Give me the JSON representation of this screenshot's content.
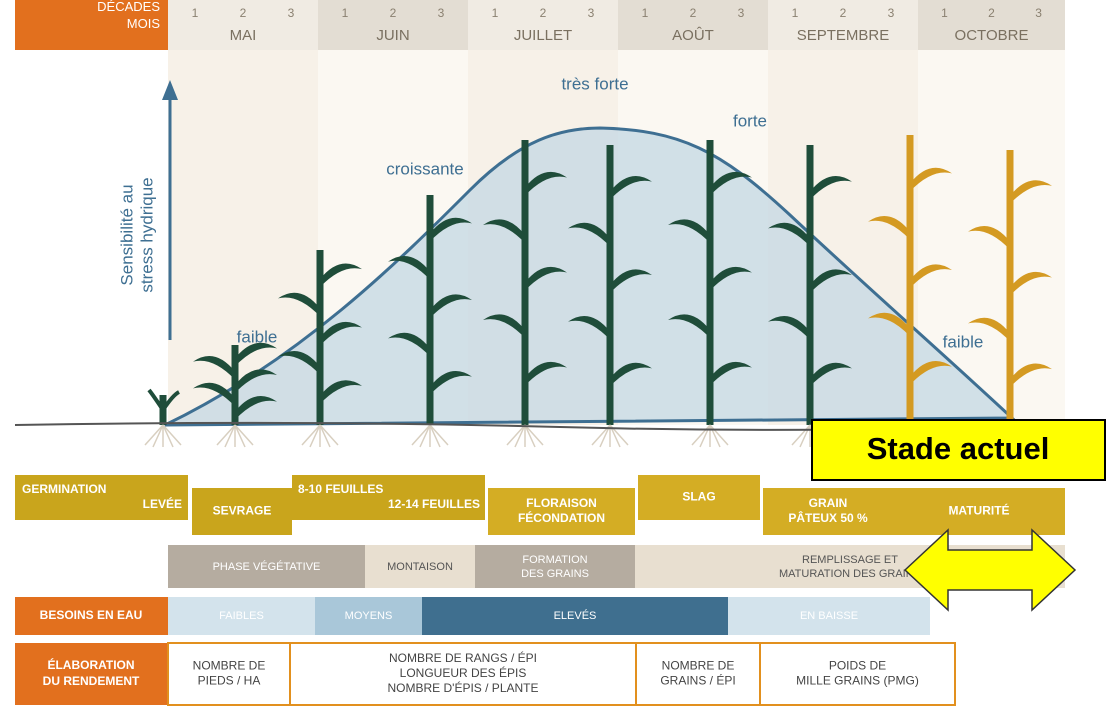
{
  "header": {
    "corner": [
      "DÉCADES",
      "MOIS"
    ],
    "decades": [
      "1",
      "2",
      "3"
    ],
    "months": [
      "MAI",
      "JUIN",
      "JUILLET",
      "AOÛT",
      "SEPTEMBRE",
      "OCTOBRE"
    ]
  },
  "curve": {
    "axis_label": [
      "Sensibilité au",
      "stress hydrique"
    ],
    "labels": [
      "très forte",
      "forte",
      "croissante",
      "faible",
      "faible"
    ]
  },
  "stages": [
    [
      "GERMINATION",
      "LEVÉE"
    ],
    [
      "SEVRAGE"
    ],
    [
      "8-10 FEUILLES",
      "12-14 FEUILLES"
    ],
    [
      "FLORAISON",
      "FÉCONDATION"
    ],
    [
      "SLAG"
    ],
    [
      "GRAIN",
      "PÂTEUX 50 %"
    ],
    [
      "MATURITÉ"
    ]
  ],
  "callout": "Stade actuel",
  "phases": [
    [
      "PHASE VÉGÉTATIVE"
    ],
    [
      "MONTAISON"
    ],
    [
      "FORMATION",
      "DES GRAINS"
    ],
    [
      "REMPLISSAGE ET",
      "MATURATION DES GRAINS"
    ]
  ],
  "water": {
    "title": "BESOINS EN EAU",
    "levels": [
      "FAIBLES",
      "MOYENS",
      "ELEVÉS",
      "EN BAISSE"
    ]
  },
  "yield": {
    "title": [
      "ÉLABORATION",
      "DU RENDEMENT"
    ],
    "items": [
      [
        "NOMBRE DE",
        "PIEDS / HA"
      ],
      [
        "NOMBRE DE RANGS / ÉPI",
        "LONGUEUR DES ÉPIS",
        "NOMBRE D'ÉPIS / PLANTE"
      ],
      [
        "NOMBRE DE",
        "GRAINS / ÉPI"
      ],
      [
        "POIDS DE",
        "MILLE GRAINS (PMG)"
      ]
    ]
  }
}
